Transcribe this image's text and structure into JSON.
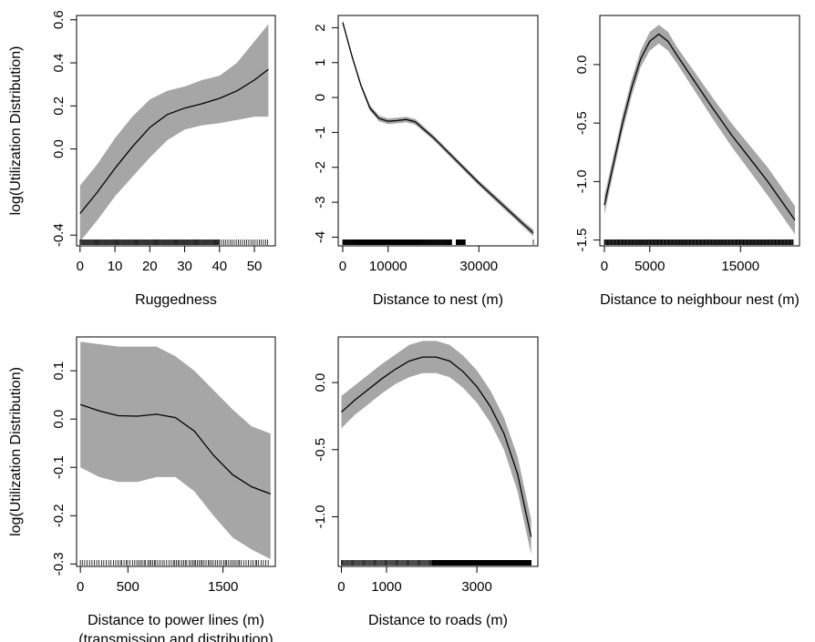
{
  "chart_data": [
    {
      "type": "line",
      "xlabel": "Ruggedness",
      "ylabel": "log(Utilization Distribution)",
      "xlim": [
        -1,
        56
      ],
      "ylim": [
        -0.45,
        0.62
      ],
      "xticks": [
        0,
        10,
        20,
        30,
        40,
        50
      ],
      "xtick_labels": [
        "0",
        "10",
        "20",
        "30",
        "40",
        "50"
      ],
      "yticks": [
        -0.4,
        0.0,
        0.2,
        0.4,
        0.6
      ],
      "ytick_labels": [
        "-0.4",
        "0.0",
        "0.2",
        "0.4",
        "0.6"
      ],
      "x": [
        0,
        5,
        10,
        15,
        20,
        25,
        30,
        35,
        40,
        45,
        50,
        54
      ],
      "y": [
        -0.3,
        -0.2,
        -0.09,
        0.01,
        0.1,
        0.16,
        0.19,
        0.21,
        0.235,
        0.27,
        0.32,
        0.37
      ],
      "upper": [
        -0.17,
        -0.07,
        0.05,
        0.15,
        0.23,
        0.27,
        0.29,
        0.32,
        0.34,
        0.4,
        0.5,
        0.58
      ],
      "lower": [
        -0.43,
        -0.33,
        -0.22,
        -0.13,
        -0.04,
        0.04,
        0.09,
        0.11,
        0.12,
        0.135,
        0.15,
        0.15
      ]
    },
    {
      "type": "line",
      "xlabel": "Distance to nest (m)",
      "ylabel": "",
      "xlim": [
        -1000,
        43000
      ],
      "ylim": [
        -4.25,
        2.35
      ],
      "xticks": [
        0,
        10000,
        30000
      ],
      "xtick_labels": [
        "0",
        "10000",
        "30000"
      ],
      "yticks": [
        -4,
        -3,
        -2,
        -1,
        0,
        1,
        2
      ],
      "ytick_labels": [
        "-4",
        "-3",
        "-2",
        "-1",
        "0",
        "1",
        "2"
      ],
      "x": [
        0,
        2000,
        4000,
        6000,
        8000,
        10000,
        12000,
        14000,
        16000,
        20000,
        25000,
        30000,
        35000,
        40000,
        42000
      ],
      "y": [
        2.15,
        1.2,
        0.35,
        -0.3,
        -0.6,
        -0.68,
        -0.66,
        -0.63,
        -0.7,
        -1.15,
        -1.8,
        -2.45,
        -3.05,
        -3.65,
        -3.88
      ],
      "upper": [
        2.2,
        1.26,
        0.41,
        -0.22,
        -0.52,
        -0.6,
        -0.58,
        -0.55,
        -0.62,
        -1.08,
        -1.73,
        -2.38,
        -2.97,
        -3.57,
        -3.78
      ],
      "lower": [
        2.1,
        1.14,
        0.29,
        -0.38,
        -0.68,
        -0.76,
        -0.74,
        -0.71,
        -0.78,
        -1.22,
        -1.87,
        -2.52,
        -3.13,
        -3.73,
        -3.98
      ]
    },
    {
      "type": "line",
      "xlabel": "Distance to neighbour nest (m)",
      "ylabel": "",
      "xlim": [
        -500,
        21500
      ],
      "ylim": [
        -1.55,
        0.42
      ],
      "xticks": [
        0,
        5000,
        15000
      ],
      "xtick_labels": [
        "0",
        "5000",
        "15000"
      ],
      "yticks": [
        -1.5,
        -1.0,
        -0.5,
        0.0
      ],
      "ytick_labels": [
        "-1.5",
        "-1.0",
        "-0.5",
        "0.0"
      ],
      "x": [
        0,
        1000,
        2000,
        3000,
        4000,
        5000,
        6000,
        7000,
        8000,
        10000,
        12000,
        14000,
        16000,
        18000,
        20000,
        21000
      ],
      "y": [
        -1.2,
        -0.85,
        -0.5,
        -0.2,
        0.05,
        0.2,
        0.26,
        0.2,
        0.08,
        -0.15,
        -0.38,
        -0.6,
        -0.8,
        -1.0,
        -1.22,
        -1.33
      ],
      "upper": [
        -1.12,
        -0.78,
        -0.43,
        -0.13,
        0.12,
        0.28,
        0.34,
        0.28,
        0.15,
        -0.07,
        -0.29,
        -0.5,
        -0.69,
        -0.88,
        -1.1,
        -1.21
      ],
      "lower": [
        -1.28,
        -0.92,
        -0.57,
        -0.27,
        -0.02,
        0.12,
        0.18,
        0.12,
        0.01,
        -0.23,
        -0.47,
        -0.7,
        -0.91,
        -1.12,
        -1.34,
        -1.45
      ]
    },
    {
      "type": "line",
      "xlabel": "Distance to power lines (m)",
      "xlabel2": "(transmission and distribution)",
      "ylabel": "log(Utilization Distribution)",
      "xlim": [
        -40,
        2050
      ],
      "ylim": [
        -0.305,
        0.17
      ],
      "xticks": [
        0,
        500,
        1500
      ],
      "xtick_labels": [
        "0",
        "500",
        "1500"
      ],
      "yticks": [
        -0.3,
        -0.2,
        -0.1,
        0.0,
        0.1
      ],
      "ytick_labels": [
        "-0.3",
        "-0.2",
        "-0.1",
        "0.0",
        "0.1"
      ],
      "x": [
        0,
        200,
        400,
        600,
        800,
        1000,
        1200,
        1400,
        1600,
        1800,
        2000
      ],
      "y": [
        0.03,
        0.017,
        0.007,
        0.006,
        0.01,
        0.003,
        -0.025,
        -0.075,
        -0.115,
        -0.14,
        -0.155
      ],
      "upper": [
        0.16,
        0.155,
        0.15,
        0.15,
        0.15,
        0.13,
        0.1,
        0.06,
        0.02,
        -0.015,
        -0.03
      ],
      "lower": [
        -0.1,
        -0.12,
        -0.13,
        -0.13,
        -0.12,
        -0.12,
        -0.15,
        -0.2,
        -0.245,
        -0.27,
        -0.29
      ]
    },
    {
      "type": "line",
      "xlabel": "Distance to roads (m)",
      "ylabel": "",
      "xlim": [
        -70,
        4350
      ],
      "ylim": [
        -1.37,
        0.34
      ],
      "xticks": [
        0,
        1000,
        3000
      ],
      "xtick_labels": [
        "0",
        "1000",
        "3000"
      ],
      "yticks": [
        -1.0,
        -0.5,
        0.0
      ],
      "ytick_labels": [
        "-1.0",
        "-0.5",
        "0.0"
      ],
      "x": [
        0,
        300,
        600,
        900,
        1200,
        1500,
        1800,
        2100,
        2400,
        2700,
        3000,
        3300,
        3600,
        3900,
        4200
      ],
      "y": [
        -0.22,
        -0.13,
        -0.05,
        0.03,
        0.1,
        0.16,
        0.19,
        0.19,
        0.16,
        0.08,
        -0.03,
        -0.18,
        -0.38,
        -0.68,
        -1.15
      ],
      "upper": [
        -0.1,
        -0.02,
        0.06,
        0.14,
        0.21,
        0.28,
        0.31,
        0.31,
        0.28,
        0.2,
        0.09,
        -0.06,
        -0.26,
        -0.55,
        -1.02
      ],
      "lower": [
        -0.34,
        -0.24,
        -0.16,
        -0.08,
        -0.01,
        0.04,
        0.07,
        0.07,
        0.04,
        -0.04,
        -0.15,
        -0.3,
        -0.5,
        -0.81,
        -1.28
      ]
    }
  ],
  "colors": {
    "band": "#a6a6a6",
    "line": "#000000",
    "frame": "#000000"
  }
}
